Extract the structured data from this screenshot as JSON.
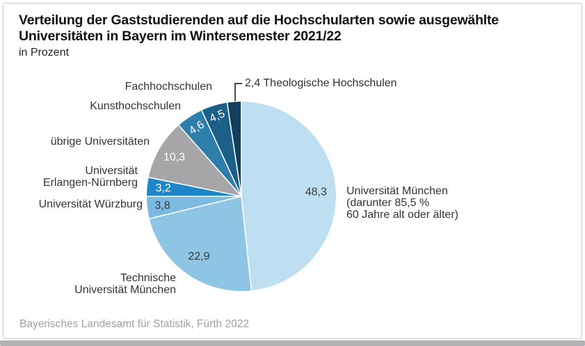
{
  "title": {
    "line1": "Verteilung der Gaststudierenden auf die Hochschularten sowie ausgewählte",
    "line2": "Universitäten in Bayern im Wintersemester 2021/22",
    "subtitle": "in Prozent"
  },
  "footer": {
    "source": "Bayerisches Landesamt für Statistik, Fürth 2022"
  },
  "chart_data": {
    "type": "pie",
    "title": "Verteilung der Gaststudierenden auf die Hochschularten sowie ausgewählte Universitäten in Bayern im Wintersemester 2021/22",
    "unit": "Prozent",
    "start_angle_deg": 0,
    "direction": "clockwise",
    "separator_color": "#ffffff",
    "slices": [
      {
        "label": "Universität München",
        "value": 48.3,
        "display_value": "48,3",
        "color": "#bedff2",
        "note_line1": "(darunter 85,5 %",
        "note_line2": "60 Jahre alt oder älter)"
      },
      {
        "label": "Technische Universität München",
        "label_lines": [
          "Technische",
          "Universität München"
        ],
        "value": 22.9,
        "display_value": "22,9",
        "color": "#8ec4e4"
      },
      {
        "label": "Universität Würzburg",
        "value": 3.8,
        "display_value": "3,8",
        "color": "#7db9e0"
      },
      {
        "label": "Universität Erlangen-Nürnberg",
        "label_lines": [
          "Universität",
          "Erlangen-Nürnberg"
        ],
        "value": 3.2,
        "display_value": "3,2",
        "color": "#1e86c8"
      },
      {
        "label": "übrige Universitäten",
        "value": 10.3,
        "display_value": "10,3",
        "color": "#a6a6a8"
      },
      {
        "label": "Kunsthochschulen",
        "value": 4.6,
        "display_value": "4,6",
        "color": "#2d7eab"
      },
      {
        "label": "Fachhochschulen",
        "value": 4.5,
        "display_value": "4,5",
        "color": "#1c5f89"
      },
      {
        "label": "Theologische Hochschulen",
        "value": 2.4,
        "display_value": "2,4",
        "color": "#133f5e"
      }
    ]
  }
}
